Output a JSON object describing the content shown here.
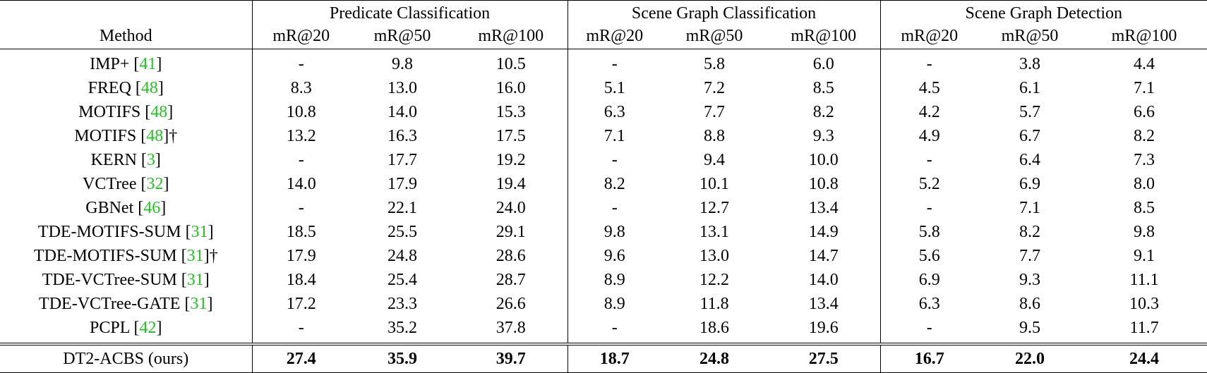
{
  "header": {
    "method_label": "Method",
    "groups": [
      "Predicate Classification",
      "Scene Graph Classification",
      "Scene Graph Detection"
    ],
    "metrics": [
      "mR@20",
      "mR@50",
      "mR@100",
      "mR@20",
      "mR@50",
      "mR@100",
      "mR@20",
      "mR@50",
      "mR@100"
    ]
  },
  "rows": [
    {
      "name": "IMP+ [",
      "ref": "41",
      "suffix": "]",
      "values": [
        "-",
        "9.8",
        "10.5",
        "-",
        "5.8",
        "6.0",
        "-",
        "3.8",
        "4.4"
      ]
    },
    {
      "name": "FREQ [",
      "ref": "48",
      "suffix": "]",
      "values": [
        "8.3",
        "13.0",
        "16.0",
        "5.1",
        "7.2",
        "8.5",
        "4.5",
        "6.1",
        "7.1"
      ]
    },
    {
      "name": "MOTIFS [",
      "ref": "48",
      "suffix": "]",
      "values": [
        "10.8",
        "14.0",
        "15.3",
        "6.3",
        "7.7",
        "8.2",
        "4.2",
        "5.7",
        "6.6"
      ]
    },
    {
      "name": "MOTIFS [",
      "ref": "48",
      "suffix": "]†",
      "values": [
        "13.2",
        "16.3",
        "17.5",
        "7.1",
        "8.8",
        "9.3",
        "4.9",
        "6.7",
        "8.2"
      ]
    },
    {
      "name": "KERN [",
      "ref": "3",
      "suffix": "]",
      "values": [
        "-",
        "17.7",
        "19.2",
        "-",
        "9.4",
        "10.0",
        "-",
        "6.4",
        "7.3"
      ]
    },
    {
      "name": "VCTree [",
      "ref": "32",
      "suffix": "]",
      "values": [
        "14.0",
        "17.9",
        "19.4",
        "8.2",
        "10.1",
        "10.8",
        "5.2",
        "6.9",
        "8.0"
      ]
    },
    {
      "name": "GBNet [",
      "ref": "46",
      "suffix": "]",
      "values": [
        "-",
        "22.1",
        "24.0",
        "-",
        "12.7",
        "13.4",
        "-",
        "7.1",
        "8.5"
      ]
    },
    {
      "name": "TDE-MOTIFS-SUM [",
      "ref": "31",
      "suffix": "]",
      "values": [
        "18.5",
        "25.5",
        "29.1",
        "9.8",
        "13.1",
        "14.9",
        "5.8",
        "8.2",
        "9.8"
      ]
    },
    {
      "name": "TDE-MOTIFS-SUM [",
      "ref": "31",
      "suffix": "]†",
      "values": [
        "17.9",
        "24.8",
        "28.6",
        "9.6",
        "13.0",
        "14.7",
        "5.6",
        "7.7",
        "9.1"
      ]
    },
    {
      "name": "TDE-VCTree-SUM [",
      "ref": "31",
      "suffix": "]",
      "values": [
        "18.4",
        "25.4",
        "28.7",
        "8.9",
        "12.2",
        "14.0",
        "6.9",
        "9.3",
        "11.1"
      ]
    },
    {
      "name": "TDE-VCTree-GATE [",
      "ref": "31",
      "suffix": "]",
      "values": [
        "17.2",
        "23.3",
        "26.6",
        "8.9",
        "11.8",
        "13.4",
        "6.3",
        "8.6",
        "10.3"
      ]
    },
    {
      "name": "PCPL [",
      "ref": "42",
      "suffix": "]",
      "values": [
        "-",
        "35.2",
        "37.8",
        "-",
        "18.6",
        "19.6",
        "-",
        "9.5",
        "11.7"
      ]
    }
  ],
  "ours": {
    "name": "DT2-ACBS (ours)",
    "values": [
      "27.4",
      "35.9",
      "39.7",
      "18.7",
      "24.8",
      "27.5",
      "16.7",
      "22.0",
      "24.4"
    ]
  },
  "colors": {
    "citation": "#22c322"
  }
}
